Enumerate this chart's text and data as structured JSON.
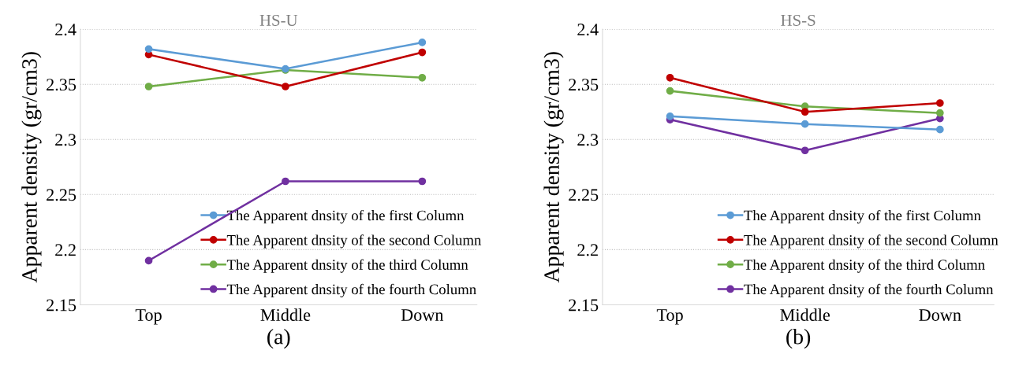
{
  "chart_data": [
    {
      "type": "line",
      "title": "HS-U",
      "xlabel": "(a)",
      "ylabel": "Apparent density (gr/cm3)",
      "categories": [
        "Top",
        "Middle",
        "Down"
      ],
      "series": [
        {
          "name": "The Apparent dnsity of the first Column",
          "color": "#5b9bd5",
          "values": [
            2.382,
            2.364,
            2.388
          ]
        },
        {
          "name": "The Apparent dnsity of the second Column",
          "color": "#c00000",
          "values": [
            2.377,
            2.348,
            2.379
          ]
        },
        {
          "name": "The Apparent dnsity of the third Column",
          "color": "#70ad47",
          "values": [
            2.348,
            2.363,
            2.356
          ]
        },
        {
          "name": "The Apparent dnsity of the fourth Column",
          "color": "#7030a0",
          "values": [
            2.19,
            2.262,
            2.262
          ]
        }
      ],
      "ylim": [
        2.15,
        2.4
      ],
      "yticks": [
        2.15,
        2.2,
        2.25,
        2.3,
        2.35,
        2.4
      ],
      "grid": "y",
      "legend": "bottom right",
      "marker": "circle",
      "line_style": "solid"
    },
    {
      "type": "line",
      "title": "HS-S",
      "xlabel": "(b)",
      "ylabel": "Apparent density (gr/cm3)",
      "categories": [
        "Top",
        "Middle",
        "Down"
      ],
      "series": [
        {
          "name": "The Apparent dnsity of the first Column",
          "color": "#5b9bd5",
          "values": [
            2.321,
            2.314,
            2.309
          ]
        },
        {
          "name": "The Apparent dnsity of the second Column",
          "color": "#c00000",
          "values": [
            2.356,
            2.325,
            2.333
          ]
        },
        {
          "name": "The Apparent dnsity of the third Column",
          "color": "#70ad47",
          "values": [
            2.344,
            2.33,
            2.324
          ]
        },
        {
          "name": "The Apparent dnsity of the fourth Column",
          "color": "#7030a0",
          "values": [
            2.318,
            2.29,
            2.319
          ]
        }
      ],
      "ylim": [
        2.15,
        2.4
      ],
      "yticks": [
        2.15,
        2.2,
        2.25,
        2.3,
        2.35,
        2.4
      ],
      "grid": "y",
      "legend": "bottom right",
      "marker": "circle",
      "line_style": "solid"
    }
  ]
}
